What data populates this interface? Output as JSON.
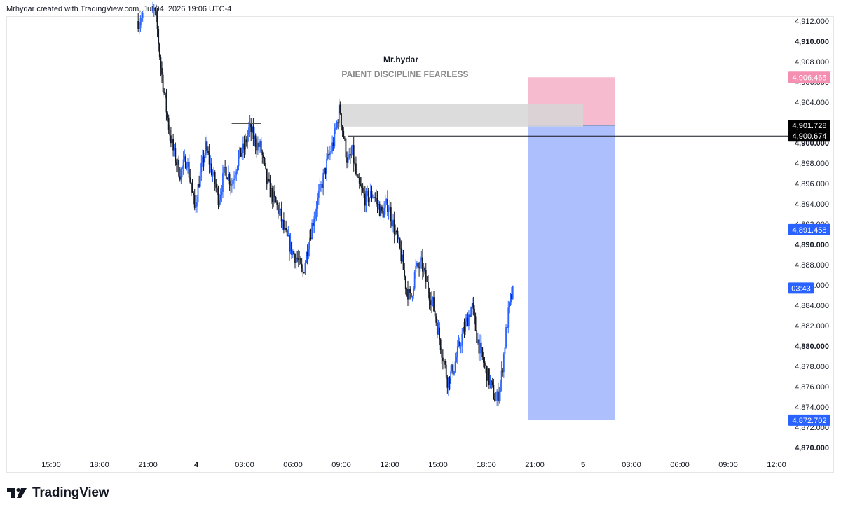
{
  "header": {
    "credit": "Mrhydar created with TradingView.com, Jul 04, 2026 19:06 UTC-4"
  },
  "overlay": {
    "title": "Mr.hydar",
    "subtitle": "PAIENT DISCIPLINE FEARLESS"
  },
  "brand": {
    "name": "TradingView",
    "logo_icon": "tradingview-logo-icon"
  },
  "colors": {
    "candle_up": "#2962ff",
    "candle_down": "#131722",
    "target_zone": "#aebffd",
    "stop_zone": "#f7bbd0",
    "supply_zone": "#d6d6d6",
    "badge_blue": "#2962ff",
    "badge_pink": "#f48fb1",
    "badge_black": "#000000"
  },
  "chart_data": {
    "type": "candlestick",
    "title": "Mr.hydar",
    "subtitle": "PAIENT DISCIPLINE FEARLESS",
    "ylim": [
      4869,
      4913
    ],
    "y_ticks": [
      {
        "value": 4870,
        "label": "4,870.000",
        "bold": true
      },
      {
        "value": 4872,
        "label": "4,872.000"
      },
      {
        "value": 4874,
        "label": "4,874.000"
      },
      {
        "value": 4876,
        "label": "4,876.000"
      },
      {
        "value": 4878,
        "label": "4,878.000"
      },
      {
        "value": 4880,
        "label": "4,880.000",
        "bold": true
      },
      {
        "value": 4882,
        "label": "4,882.000"
      },
      {
        "value": 4884,
        "label": "4,884.000"
      },
      {
        "value": 4886,
        "label": "4,886.000"
      },
      {
        "value": 4888,
        "label": "4,888.000"
      },
      {
        "value": 4890,
        "label": "4,890.000",
        "bold": true
      },
      {
        "value": 4892,
        "label": "4,892.000"
      },
      {
        "value": 4894,
        "label": "4,894.000"
      },
      {
        "value": 4896,
        "label": "4,896.000"
      },
      {
        "value": 4898,
        "label": "4,898.000"
      },
      {
        "value": 4900,
        "label": "4,900.000",
        "bold": true
      },
      {
        "value": 4902,
        "label": "4,902.000"
      },
      {
        "value": 4904,
        "label": "4,904.000"
      },
      {
        "value": 4906,
        "label": "4,906.000"
      },
      {
        "value": 4908,
        "label": "4,908.000"
      },
      {
        "value": 4910,
        "label": "4,910.000",
        "bold": true
      },
      {
        "value": 4912,
        "label": "4,912.000"
      }
    ],
    "x_ticks": [
      {
        "t": -9,
        "label": "15:00"
      },
      {
        "t": -6,
        "label": "18:00"
      },
      {
        "t": -3,
        "label": "21:00"
      },
      {
        "t": 0,
        "label": "4",
        "bold": true
      },
      {
        "t": 3,
        "label": "03:00"
      },
      {
        "t": 6,
        "label": "06:00"
      },
      {
        "t": 9,
        "label": "09:00"
      },
      {
        "t": 12,
        "label": "12:00"
      },
      {
        "t": 15,
        "label": "15:00"
      },
      {
        "t": 18,
        "label": "18:00"
      },
      {
        "t": 21,
        "label": "21:00"
      },
      {
        "t": 24,
        "label": "5",
        "bold": true
      },
      {
        "t": 27,
        "label": "03:00"
      },
      {
        "t": 30,
        "label": "06:00"
      },
      {
        "t": 33,
        "label": "09:00"
      },
      {
        "t": 36,
        "label": "12:00"
      }
    ],
    "price_path": [
      [
        -3.6,
        4912.0
      ],
      [
        -2.6,
        4913.0
      ],
      [
        -2.4,
        4911.0
      ],
      [
        -2.2,
        4907.5
      ],
      [
        -2.0,
        4905.0
      ],
      [
        -1.7,
        4901.5
      ],
      [
        -1.4,
        4899.0
      ],
      [
        -1.0,
        4897.0
      ],
      [
        -0.6,
        4898.5
      ],
      [
        -0.3,
        4895.5
      ],
      [
        -0.1,
        4893.5
      ],
      [
        0.2,
        4896.5
      ],
      [
        0.6,
        4899.5
      ],
      [
        1.0,
        4897.0
      ],
      [
        1.4,
        4894.5
      ],
      [
        1.8,
        4897.5
      ],
      [
        2.2,
        4896.0
      ],
      [
        2.6,
        4898.5
      ],
      [
        3.0,
        4899.5
      ],
      [
        3.3,
        4901.5
      ],
      [
        3.7,
        4900.0
      ],
      [
        4.0,
        4899.5
      ],
      [
        4.4,
        4896.0
      ],
      [
        4.8,
        4894.5
      ],
      [
        5.2,
        4893.0
      ],
      [
        5.5,
        4891.0
      ],
      [
        5.9,
        4889.5
      ],
      [
        6.3,
        4888.5
      ],
      [
        6.6,
        4887.0
      ],
      [
        7.0,
        4890.5
      ],
      [
        7.4,
        4893.5
      ],
      [
        7.8,
        4896.0
      ],
      [
        8.1,
        4898.0
      ],
      [
        8.5,
        4900.0
      ],
      [
        8.9,
        4903.5
      ],
      [
        9.1,
        4901.0
      ],
      [
        9.4,
        4898.0
      ],
      [
        9.7,
        4899.0
      ],
      [
        10.0,
        4896.0
      ],
      [
        10.5,
        4894.5
      ],
      [
        11.0,
        4895.0
      ],
      [
        11.5,
        4893.0
      ],
      [
        11.9,
        4894.0
      ],
      [
        12.3,
        4891.5
      ],
      [
        12.7,
        4889.0
      ],
      [
        13.0,
        4886.0
      ],
      [
        13.3,
        4884.5
      ],
      [
        13.6,
        4887.5
      ],
      [
        14.0,
        4888.0
      ],
      [
        14.4,
        4885.5
      ],
      [
        14.7,
        4884.0
      ],
      [
        15.0,
        4881.5
      ],
      [
        15.3,
        4879.0
      ],
      [
        15.6,
        4876.5
      ],
      [
        16.0,
        4878.0
      ],
      [
        16.4,
        4880.5
      ],
      [
        16.8,
        4882.5
      ],
      [
        17.1,
        4884.0
      ],
      [
        17.4,
        4881.0
      ],
      [
        17.7,
        4879.0
      ],
      [
        18.0,
        4877.5
      ],
      [
        18.3,
        4876.0
      ],
      [
        18.6,
        4874.5
      ],
      [
        18.9,
        4876.5
      ],
      [
        19.1,
        4879.5
      ],
      [
        19.3,
        4882.5
      ],
      [
        19.5,
        4884.5
      ],
      [
        19.7,
        4885.5
      ]
    ],
    "annotations": {
      "supply_zone": {
        "t_start": 8.9,
        "t_end": 24.0,
        "price_top": 4903.8,
        "price_bottom": 4901.6
      },
      "short_position": {
        "t_start": 20.6,
        "t_end": 26.0,
        "entry": 4901.728,
        "stop": 4906.465,
        "target": 4872.702
      },
      "horizontal_line": {
        "t_start": 9.4,
        "price": 4900.674
      },
      "high_marker": {
        "t_start": 2.2,
        "t_end": 4.0,
        "price": 4901.9
      },
      "low_marker": {
        "t_start": 5.8,
        "t_end": 7.3,
        "price": 4886.1
      }
    },
    "price_badges": [
      {
        "value": 4906.465,
        "label": "4,906.465",
        "style": "pink"
      },
      {
        "value": 4901.728,
        "label": "4,901.728",
        "style": "black"
      },
      {
        "value": 4900.674,
        "label": "4,900.674",
        "style": "black"
      },
      {
        "value": 4891.458,
        "label": "4,891.458",
        "style": "blue"
      },
      {
        "value": 4885.7,
        "label": "03:43",
        "style": "blue-small"
      },
      {
        "value": 4872.702,
        "label": "4,872.702",
        "style": "blue"
      }
    ]
  }
}
